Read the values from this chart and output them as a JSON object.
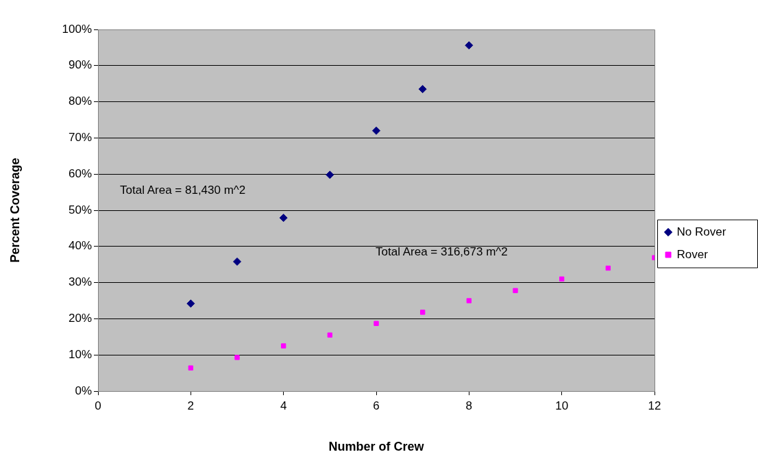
{
  "chart_data": {
    "type": "scatter",
    "xlabel": "Number of Crew",
    "ylabel": "Percent Coverage",
    "series": [
      {
        "name": "No Rover",
        "color": "#000080",
        "marker": "diamond",
        "x": [
          2,
          3,
          4,
          5,
          6,
          7,
          8
        ],
        "values": [
          24.2,
          35.8,
          47.9,
          59.8,
          72,
          83.5,
          95.6
        ]
      },
      {
        "name": "Rover",
        "color": "#ff00ff",
        "marker": "square",
        "x": [
          2,
          3,
          4,
          5,
          6,
          7,
          8,
          9,
          10,
          11,
          12
        ],
        "values": [
          6.4,
          9.3,
          12.5,
          15.5,
          18.7,
          21.8,
          25,
          27.8,
          31,
          34,
          36.9
        ]
      }
    ],
    "xlim": [
      0,
      12
    ],
    "xticks": [
      0,
      2,
      4,
      6,
      8,
      10,
      12
    ],
    "ylim": [
      0,
      100
    ],
    "yticks": [
      {
        "value": 0,
        "label": "0%"
      },
      {
        "value": 10,
        "label": "10%"
      },
      {
        "value": 20,
        "label": "20%"
      },
      {
        "value": 30,
        "label": "30%"
      },
      {
        "value": 40,
        "label": "40%"
      },
      {
        "value": 50,
        "label": "50%"
      },
      {
        "value": 60,
        "label": "60%"
      },
      {
        "value": 70,
        "label": "70%"
      },
      {
        "value": 80,
        "label": "80%"
      },
      {
        "value": 90,
        "label": "90%"
      },
      {
        "value": 100,
        "label": "100%"
      }
    ],
    "annotations": [
      "Total Area = 81,430 m^2",
      "Total Area = 316,673 m^2"
    ],
    "grid": "y",
    "legend": "right"
  }
}
